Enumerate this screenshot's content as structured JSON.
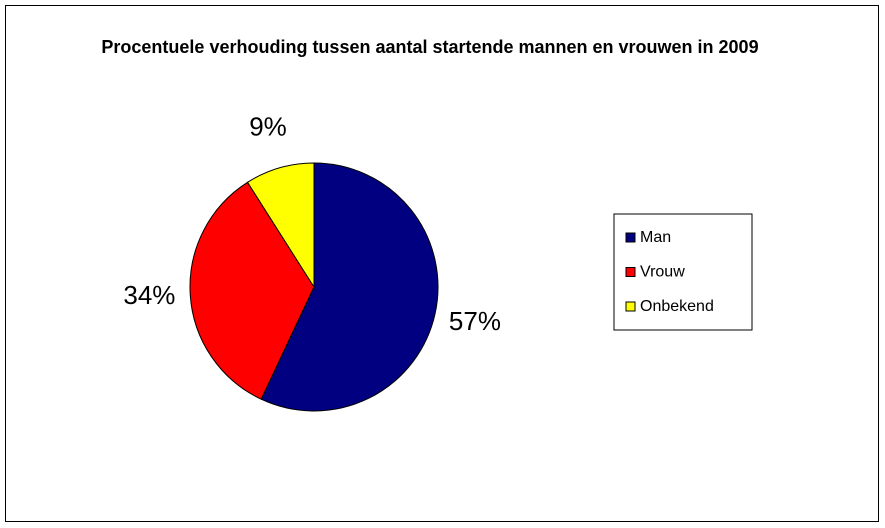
{
  "chart_data": {
    "type": "pie",
    "title": "Procentuele verhouding tussen aantal startende mannen en vrouwen in 2009",
    "categories": [
      "Man",
      "Vrouw",
      "Onbekend"
    ],
    "values": [
      57,
      34,
      9
    ],
    "value_labels": [
      "57%",
      "34%",
      "9%"
    ],
    "colors": [
      "#000080",
      "#ff0000",
      "#ffff00"
    ],
    "legend": "right"
  }
}
